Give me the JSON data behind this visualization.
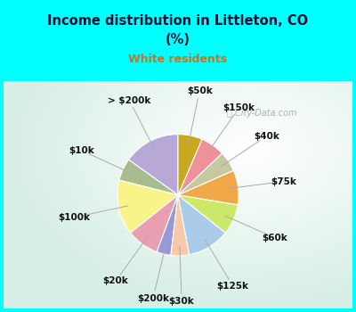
{
  "title_line1": "Income distribution in Littleton, CO",
  "title_line2": "(%)",
  "subtitle": "White residents",
  "background_outer": "#00FFFF",
  "background_inner_color": "#c8eed8",
  "watermark": "ⓘ City-Data.com",
  "labels": [
    "> $200k",
    "$10k",
    "$100k",
    "$20k",
    "$200k",
    "$30k",
    "$125k",
    "$60k",
    "$75k",
    "$40k",
    "$150k",
    "$50k"
  ],
  "sizes": [
    14.0,
    5.5,
    13.5,
    8.0,
    3.5,
    4.5,
    10.5,
    7.5,
    8.5,
    5.0,
    6.0,
    6.0
  ],
  "colors": [
    "#b8a8d8",
    "#a8bc90",
    "#f8f488",
    "#e8a0b0",
    "#9898d8",
    "#f8c8a8",
    "#aacce8",
    "#cce868",
    "#f0a848",
    "#c8c8a0",
    "#f09098",
    "#c8a820"
  ],
  "startangle": 90,
  "label_fontsize": 7.5
}
